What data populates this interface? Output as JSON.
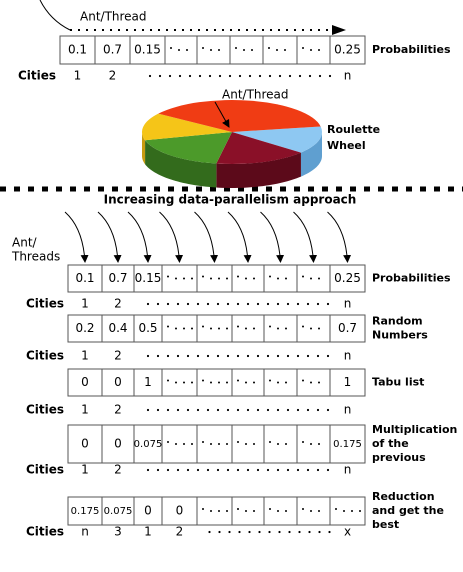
{
  "top": {
    "thread_label": "Ant/Thread",
    "row": {
      "cells": [
        "0.1",
        "0.7",
        "0.15"
      ],
      "last": "0.25",
      "label": [
        "Probabilities"
      ]
    },
    "cities": [
      "1",
      "2"
    ],
    "cities_last": "n",
    "pie": {
      "thread_label": "Ant/Thread",
      "label": [
        "Roulette",
        "Wheel"
      ]
    }
  },
  "cities_label": "Cities",
  "title": "Increasing data-parallelism approach",
  "threads_label": [
    "Ant/",
    "Threads"
  ],
  "rows": [
    {
      "cells": [
        "0.1",
        "0.7",
        "0.15"
      ],
      "last": "0.25",
      "label": [
        "Probabilities"
      ],
      "cities": [
        "1",
        "2"
      ],
      "cities_last": "n"
    },
    {
      "cells": [
        "0.2",
        "0.4",
        "0.5"
      ],
      "last": "0.7",
      "label": [
        "Random",
        "Numbers"
      ],
      "cities": [
        "1",
        "2"
      ],
      "cities_last": "n"
    },
    {
      "cells": [
        "0",
        "0",
        "1"
      ],
      "last": "1",
      "label": [
        "Tabu list"
      ],
      "cities": [
        "1",
        "2"
      ],
      "cities_last": "n"
    },
    {
      "cells": [
        "0",
        "0",
        "0.075"
      ],
      "last": "0.175",
      "label": [
        "Multiplication",
        "of the",
        "previous"
      ],
      "cities": [
        "1",
        "2"
      ],
      "cities_last": "n"
    },
    {
      "cells": [
        "0.175",
        "0.075",
        "0",
        "0"
      ],
      "label": [
        "Reduction",
        "and get the",
        "best"
      ],
      "cities": [
        "n",
        "3",
        "1",
        "2"
      ],
      "cities_last": "x"
    }
  ]
}
